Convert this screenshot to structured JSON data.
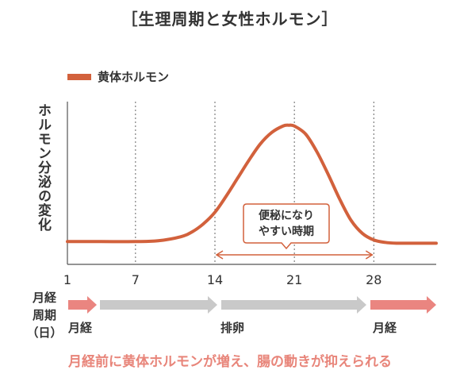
{
  "title": "［生理周期と女性ホルモン］",
  "legend": {
    "label": "黄体ホルモン",
    "color": "#d2613c"
  },
  "y_axis_label": "ホルモン分泌の変化",
  "x_axis_title": [
    "月経",
    "周期",
    "（日）"
  ],
  "callout": {
    "line1": "便秘になり",
    "line2": "やすい時期"
  },
  "phases": [
    {
      "label": "月経",
      "color": "#ea8580"
    },
    {
      "label": "排卵",
      "color": "#c9c9c9"
    },
    {
      "label": "月経",
      "color": "#ea8580"
    }
  ],
  "footer": "月経前に黄体ホルモンが増え、腸の動きが抑えられる",
  "chart_data": {
    "type": "line",
    "x_ticks": [
      1,
      7,
      14,
      21,
      28
    ],
    "xlim": [
      1,
      33.5
    ],
    "ylim": [
      0,
      100
    ],
    "series": [
      {
        "name": "黄体ホルモン",
        "color": "#d2613c",
        "x": [
          1,
          4,
          7,
          9,
          11,
          12,
          13,
          14,
          15,
          16,
          17,
          18,
          19,
          20,
          20.5,
          21,
          22,
          23,
          24,
          25,
          26,
          27,
          28,
          29,
          30,
          31,
          33.5
        ],
        "y": [
          14,
          14,
          14,
          14.5,
          17,
          20,
          25,
          32,
          42,
          53,
          64,
          74,
          81,
          85,
          85.5,
          85,
          80,
          69,
          55,
          40,
          27,
          19,
          15,
          13.5,
          13,
          13,
          13
        ]
      }
    ],
    "gridlines_x": [
      7,
      14,
      21,
      28
    ],
    "annotation": {
      "type": "range-arrow",
      "x_from": 14,
      "x_to": 28,
      "label": "便秘になりやすい時期"
    }
  }
}
